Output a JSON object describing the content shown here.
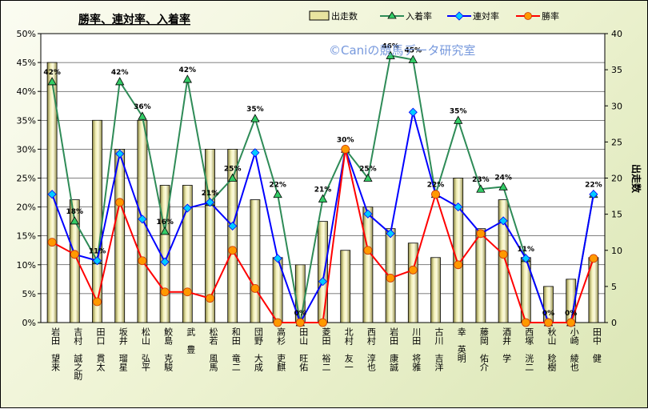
{
  "chart_data": {
    "type": "bar+line",
    "title": "勝率、連対率、入着率",
    "watermark": "©Caniの競馬データ研究室",
    "y2label": "出走数",
    "ylim": [
      0,
      50
    ],
    "y2lim": [
      0,
      40
    ],
    "yticks": [
      "0%",
      "5%",
      "10%",
      "15%",
      "20%",
      "25%",
      "30%",
      "35%",
      "40%",
      "45%",
      "50%"
    ],
    "y2ticks": [
      "0",
      "5",
      "10",
      "15",
      "20",
      "25",
      "30",
      "35",
      "40"
    ],
    "categories": [
      "岩田 望来",
      "吉村 誠之助",
      "田口 貫太",
      "坂井 瑠星",
      "松山 弘平",
      "鮫島 克駿",
      "武 豊",
      "松若 風馬",
      "和田 竜二",
      "団野 大成",
      "高杉 吏麒",
      "田山 旺佑",
      "菱田 裕二",
      "北村 友一",
      "西村 淳也",
      "岩田 康誠",
      "川田 将雅",
      "古川 吉洋",
      "幸 英明",
      "藤岡 佑介",
      "酒井 学",
      "西塚 洸二",
      "秋山 稔樹",
      "小崎 綾也",
      "田中 健"
    ],
    "colors": {
      "bars": "#e8e4a0",
      "place": "#2e8b57",
      "rentai": "#0000ff",
      "win": "#ff0000"
    },
    "series": [
      {
        "name": "出走数",
        "axis": "right",
        "values": [
          36,
          17,
          28,
          24,
          28,
          19,
          19,
          24,
          24,
          17,
          9,
          8,
          14,
          10,
          16,
          13,
          11,
          9,
          20,
          13,
          17,
          9,
          5,
          6,
          9
        ]
      },
      {
        "name": "入着率",
        "axis": "left",
        "values": [
          41.7,
          17.6,
          10.7,
          41.7,
          35.7,
          15.8,
          42.1,
          20.8,
          25.0,
          35.3,
          22.2,
          0,
          21.4,
          30.0,
          25.0,
          46.2,
          45.5,
          22.2,
          35.0,
          23.1,
          23.5,
          11.1,
          0,
          0,
          22.2
        ]
      },
      {
        "name": "連対率",
        "axis": "left",
        "values": [
          22.2,
          11.8,
          10.7,
          29.2,
          17.9,
          10.5,
          19.8,
          20.8,
          16.7,
          29.4,
          11.1,
          0,
          7.1,
          30.0,
          18.8,
          15.4,
          36.4,
          22.2,
          20.0,
          15.4,
          17.6,
          11.1,
          0,
          0,
          22.2
        ]
      },
      {
        "name": "勝率",
        "axis": "left",
        "values": [
          13.9,
          11.8,
          3.6,
          20.8,
          10.7,
          5.3,
          5.3,
          4.2,
          12.5,
          5.9,
          0,
          0,
          0,
          30.0,
          12.5,
          7.7,
          9.1,
          22.2,
          10.0,
          15.4,
          11.8,
          0,
          0,
          0,
          11.1
        ]
      }
    ],
    "data_labels": [
      "42%",
      "18%",
      "11%",
      "42%",
      "36%",
      "16%",
      "42%",
      "21%",
      "25%",
      "35%",
      "22%",
      "0%",
      "21%",
      "30%",
      "25%",
      "46%",
      "45%",
      "22%",
      "35%",
      "23%",
      "24%",
      "11%",
      "0%",
      "0%",
      "22%"
    ]
  }
}
